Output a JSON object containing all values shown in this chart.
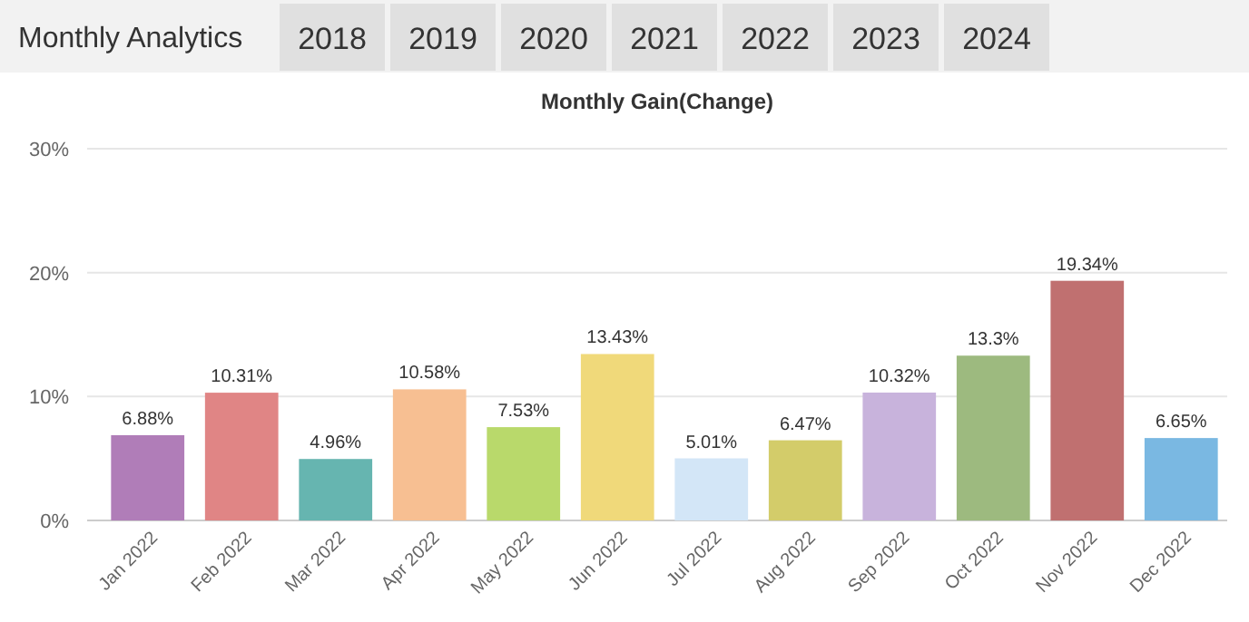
{
  "chart_data": {
    "type": "bar",
    "title": "Monthly Analytics",
    "subtitle": "Monthly Gain(Change)",
    "annotations": [
      "2018",
      "2019",
      "2020",
      "2021",
      "2022",
      "2023",
      "2024"
    ],
    "categories": [
      "Jan 2022",
      "Feb 2022",
      "Mar 2022",
      "Apr 2022",
      "May 2022",
      "Jun 2022",
      "Jul 2022",
      "Aug 2022",
      "Sep 2022",
      "Oct 2022",
      "Nov 2022",
      "Dec 2022"
    ],
    "values": [
      6.88,
      10.31,
      4.96,
      10.58,
      7.53,
      13.43,
      5.01,
      6.47,
      10.32,
      13.3,
      19.34,
      6.65
    ],
    "colors": [
      "#b07db8",
      "#e08585",
      "#66b5b0",
      "#f7bf92",
      "#b9d96b",
      "#f0d97a",
      "#d3e6f7",
      "#d3cc6a",
      "#c8b3dc",
      "#9dba7f",
      "#c07070",
      "#7ab8e2"
    ],
    "ylim": [
      0,
      30
    ],
    "yticks": [
      {
        "value": 0,
        "label": "0%"
      },
      {
        "value": 10,
        "label": "10%"
      },
      {
        "value": 20,
        "label": "20%"
      },
      {
        "value": 30,
        "label": "30%"
      }
    ],
    "value_labels": [
      "6.88%",
      "10.31%",
      "4.96%",
      "10.58%",
      "7.53%",
      "13.43%",
      "5.01%",
      "6.47%",
      "10.32%",
      "13.3%",
      "19.34%",
      "6.65%"
    ],
    "grid": "y"
  }
}
